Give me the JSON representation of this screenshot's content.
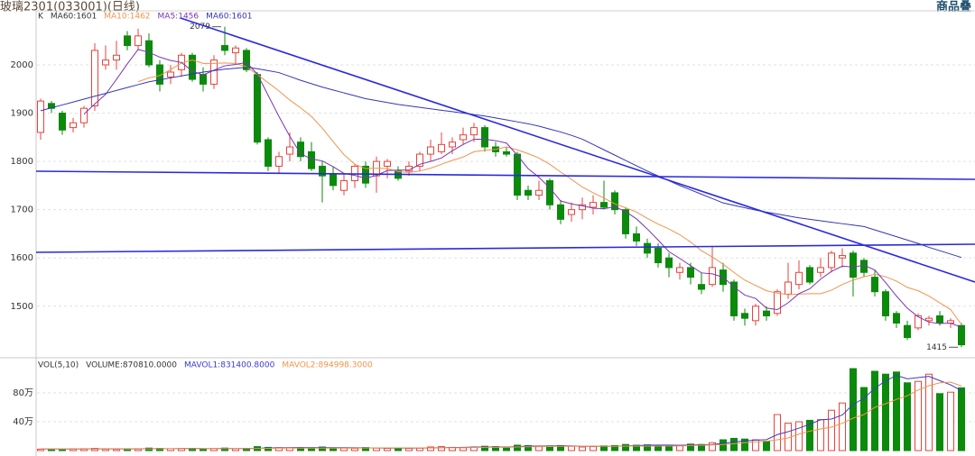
{
  "header": {
    "title": "玻璃2301(033001)(日线)",
    "button": "商品叠"
  },
  "chart_data": [
    {
      "type": "candlestick",
      "legend": [
        "K",
        "MA60:1601"
      ],
      "legend_color": "#333333",
      "up_color": "#e8433c",
      "down_color": "#0b8a0b",
      "ylim": [
        1395,
        2112
      ],
      "yticks": [
        1500,
        1600,
        1700,
        1800,
        1900,
        2000
      ],
      "grid": true,
      "high_label": 2079,
      "low_label": 1415,
      "open": [
        1860,
        1920,
        1900,
        1870,
        1880,
        1915,
        2000,
        2010,
        2060,
        2040,
        2050,
        2000,
        1975,
        1990,
        2020,
        1980,
        1960,
        2040,
        2025,
        2030,
        1980,
        1845,
        1790,
        1815,
        1840,
        1820,
        1790,
        1775,
        1740,
        1760,
        1790,
        1770,
        1790,
        1780,
        1780,
        1790,
        1815,
        1820,
        1830,
        1845,
        1855,
        1870,
        1830,
        1820,
        1815,
        1740,
        1730,
        1760,
        1710,
        1690,
        1700,
        1705,
        1715,
        1735,
        1700,
        1650,
        1630,
        1620,
        1600,
        1570,
        1580,
        1545,
        1545,
        1575,
        1550,
        1485,
        1470,
        1490,
        1485,
        1525,
        1545,
        1580,
        1570,
        1580,
        1600,
        1610,
        1595,
        1560,
        1530,
        1485,
        1460,
        1455,
        1470,
        1480,
        1465,
        1460
      ],
      "high": [
        1930,
        1925,
        1905,
        1890,
        1915,
        2045,
        2040,
        2050,
        2070,
        2075,
        2065,
        2010,
        2000,
        2025,
        2025,
        1995,
        2020,
        2079,
        2040,
        2035,
        1985,
        1850,
        1820,
        1860,
        1850,
        1840,
        1800,
        1790,
        1775,
        1795,
        1800,
        1810,
        1805,
        1790,
        1800,
        1820,
        1845,
        1860,
        1850,
        1870,
        1880,
        1875,
        1840,
        1830,
        1820,
        1750,
        1760,
        1765,
        1720,
        1715,
        1725,
        1730,
        1760,
        1740,
        1705,
        1665,
        1640,
        1630,
        1610,
        1590,
        1590,
        1570,
        1625,
        1590,
        1555,
        1495,
        1505,
        1500,
        1535,
        1590,
        1595,
        1585,
        1600,
        1615,
        1620,
        1615,
        1600,
        1575,
        1535,
        1490,
        1470,
        1485,
        1480,
        1490,
        1475,
        1465
      ],
      "low": [
        1845,
        1900,
        1855,
        1860,
        1870,
        1905,
        1990,
        1990,
        2030,
        2030,
        1995,
        1945,
        1960,
        1975,
        1965,
        1945,
        1950,
        2020,
        2000,
        1985,
        1835,
        1780,
        1775,
        1800,
        1800,
        1780,
        1715,
        1740,
        1730,
        1745,
        1745,
        1735,
        1765,
        1760,
        1770,
        1780,
        1800,
        1815,
        1815,
        1835,
        1840,
        1820,
        1810,
        1810,
        1720,
        1720,
        1720,
        1700,
        1670,
        1675,
        1680,
        1690,
        1700,
        1690,
        1640,
        1625,
        1600,
        1580,
        1560,
        1555,
        1545,
        1525,
        1540,
        1530,
        1470,
        1460,
        1460,
        1470,
        1480,
        1515,
        1535,
        1545,
        1560,
        1570,
        1580,
        1520,
        1560,
        1520,
        1470,
        1455,
        1430,
        1450,
        1460,
        1460,
        1455,
        1415
      ],
      "close": [
        1925,
        1910,
        1865,
        1880,
        1910,
        2030,
        2010,
        2020,
        2040,
        2060,
        2000,
        1960,
        1985,
        2020,
        1970,
        1960,
        2010,
        2030,
        2035,
        1990,
        1840,
        1790,
        1810,
        1830,
        1810,
        1785,
        1770,
        1750,
        1760,
        1790,
        1755,
        1800,
        1800,
        1765,
        1790,
        1815,
        1830,
        1835,
        1840,
        1855,
        1870,
        1830,
        1820,
        1815,
        1730,
        1730,
        1740,
        1710,
        1680,
        1700,
        1710,
        1715,
        1705,
        1700,
        1650,
        1635,
        1610,
        1590,
        1580,
        1580,
        1560,
        1535,
        1580,
        1545,
        1480,
        1475,
        1500,
        1480,
        1530,
        1550,
        1570,
        1550,
        1580,
        1610,
        1605,
        1560,
        1570,
        1530,
        1480,
        1465,
        1435,
        1480,
        1475,
        1465,
        1470,
        1420
      ],
      "series": [
        {
          "name": "MA10:1462",
          "color": "#f0944a",
          "values": [
            null,
            null,
            null,
            null,
            null,
            null,
            null,
            null,
            null,
            1965,
            1973,
            1978,
            1990,
            2004,
            2010,
            2003,
            2003,
            2004,
            2003,
            1996,
            1980,
            1963,
            1946,
            1927,
            1911,
            1893,
            1869,
            1841,
            1814,
            1794,
            1785,
            1786,
            1785,
            1779,
            1777,
            1780,
            1786,
            1794,
            1802,
            1809,
            1820,
            1823,
            1825,
            1830,
            1824,
            1816,
            1807,
            1794,
            1778,
            1763,
            1747,
            1735,
            1724,
            1712,
            1704,
            1695,
            1682,
            1670,
            1660,
            1648,
            1633,
            1615,
            1602,
            1587,
            1570,
            1554,
            1543,
            1532,
            1527,
            1524,
            1525,
            1526,
            1526,
            1533,
            1545,
            1554,
            1561,
            1566,
            1561,
            1552,
            1539,
            1532,
            1521,
            1507,
            1493,
            1462
          ]
        },
        {
          "name": "MA5:1456",
          "color": "#7a35b5",
          "values": [
            null,
            null,
            null,
            null,
            1898,
            1919,
            1939,
            1970,
            2002,
            2032,
            2026,
            2016,
            2009,
            2005,
            1987,
            1979,
            1989,
            1998,
            2001,
            2005,
            1981,
            1937,
            1893,
            1852,
            1816,
            1805,
            1801,
            1789,
            1775,
            1771,
            1765,
            1771,
            1781,
            1782,
            1782,
            1794,
            1800,
            1807,
            1822,
            1835,
            1846,
            1846,
            1843,
            1838,
            1813,
            1785,
            1767,
            1745,
            1718,
            1712,
            1708,
            1703,
            1702,
            1706,
            1696,
            1681,
            1660,
            1637,
            1613,
            1599,
            1584,
            1569,
            1567,
            1560,
            1540,
            1523,
            1516,
            1496,
            1493,
            1507,
            1526,
            1536,
            1556,
            1572,
            1583,
            1581,
            1585,
            1575,
            1549,
            1521,
            1496,
            1478,
            1467,
            1464,
            1465,
            1456
          ]
        },
        {
          "name": "MA60:1601",
          "color": "#3535b8",
          "values": [
            1905,
            1911,
            1917,
            1923,
            1929,
            1935,
            1941,
            1947,
            1953,
            1959,
            1965,
            1969,
            1973,
            1977,
            1981,
            1985,
            1988,
            1991,
            1993,
            1995,
            1992,
            1988,
            1984,
            1976,
            1968,
            1961,
            1954,
            1948,
            1942,
            1936,
            1930,
            1926,
            1922,
            1918,
            1915,
            1912,
            1909,
            1906,
            1903,
            1900,
            1897,
            1894,
            1890,
            1886,
            1882,
            1878,
            1873,
            1867,
            1861,
            1854,
            1846,
            1835,
            1824,
            1813,
            1802,
            1791,
            1780,
            1770,
            1760,
            1750,
            1741,
            1732,
            1723,
            1714,
            1709,
            1704,
            1699,
            1695,
            1691,
            1687,
            1683,
            1680,
            1677,
            1674,
            1671,
            1668,
            1665,
            1658,
            1651,
            1644,
            1637,
            1630,
            1622,
            1615,
            1608,
            1601
          ]
        }
      ]
    },
    {
      "type": "bar",
      "legend": [
        "VOL(5,10)",
        "VOLUME:870810.0000"
      ],
      "legend_color": "#333333",
      "ylim": [
        0,
        1275000
      ],
      "yticks": [
        {
          "value": 400000,
          "label": "40万"
        },
        {
          "value": 800000,
          "label": "80万"
        }
      ],
      "grid": true,
      "values": [
        20000,
        15000,
        18000,
        22000,
        25000,
        30000,
        20000,
        18000,
        25000,
        22000,
        35000,
        30000,
        25000,
        28000,
        30000,
        22000,
        28000,
        35000,
        25000,
        30000,
        55000,
        45000,
        40000,
        38000,
        35000,
        40000,
        50000,
        38000,
        35000,
        30000,
        42000,
        35000,
        30000,
        32000,
        30000,
        35000,
        50000,
        55000,
        45000,
        40000,
        50000,
        60000,
        55000,
        50000,
        75000,
        70000,
        55000,
        65000,
        70000,
        60000,
        50000,
        55000,
        65000,
        70000,
        85000,
        75000,
        80000,
        70000,
        75000,
        70000,
        90000,
        85000,
        110000,
        150000,
        170000,
        160000,
        150000,
        130000,
        500000,
        380000,
        400000,
        420000,
        430000,
        560000,
        660000,
        1137000,
        875000,
        1100000,
        1060000,
        1090000,
        940000,
        960000,
        1060000,
        790000,
        810000,
        870810
      ],
      "series": [
        {
          "name": "MAVOL1:831400.8000",
          "color": "#3a3ad0",
          "values": [
            22000,
            22000,
            22000,
            22000,
            22000,
            23000,
            23000,
            23000,
            23000,
            24000,
            26000,
            27000,
            27000,
            28000,
            29000,
            28000,
            27000,
            29000,
            28000,
            28000,
            33000,
            37000,
            39000,
            41000,
            43000,
            40000,
            42000,
            41000,
            40000,
            39000,
            39000,
            36000,
            34000,
            34000,
            34000,
            34000,
            37000,
            40000,
            43000,
            45000,
            48000,
            50000,
            50000,
            49000,
            56000,
            62000,
            62000,
            63000,
            67000,
            64000,
            60000,
            60000,
            60000,
            60000,
            65000,
            69000,
            75000,
            76000,
            77000,
            74000,
            78000,
            80000,
            85000,
            100000,
            120000,
            135000,
            146000,
            152000,
            222000,
            262000,
            312000,
            366000,
            426000,
            438000,
            494000,
            641000,
            725000,
            866000,
            966000,
            1044000,
            995000,
            1012000,
            1030000,
            970000,
            912000,
            831400.8
          ]
        },
        {
          "name": "MAVOL2:894998.3000",
          "color": "#f0944a",
          "values": [
            22000,
            22000,
            22000,
            22000,
            22000,
            22000,
            22000,
            22000,
            22000,
            22000,
            24000,
            25000,
            25000,
            25000,
            26000,
            26000,
            25000,
            26000,
            26000,
            26000,
            29000,
            32000,
            33000,
            34000,
            36000,
            34000,
            35000,
            35000,
            34000,
            35000,
            36000,
            37000,
            37000,
            38000,
            38000,
            37000,
            39000,
            40000,
            39000,
            40000,
            42000,
            45000,
            46000,
            46000,
            50000,
            53000,
            55000,
            57000,
            60000,
            60000,
            60000,
            61000,
            61000,
            60000,
            63000,
            63000,
            63000,
            63000,
            64000,
            64000,
            70000,
            73000,
            78000,
            84000,
            96000,
            110000,
            120000,
            130000,
            150000,
            175000,
            230000,
            270000,
            300000,
            325000,
            380000,
            450000,
            500000,
            600000,
            650000,
            710000,
            760000,
            840000,
            900000,
            940000,
            950000,
            894998.3
          ]
        }
      ]
    }
  ]
}
